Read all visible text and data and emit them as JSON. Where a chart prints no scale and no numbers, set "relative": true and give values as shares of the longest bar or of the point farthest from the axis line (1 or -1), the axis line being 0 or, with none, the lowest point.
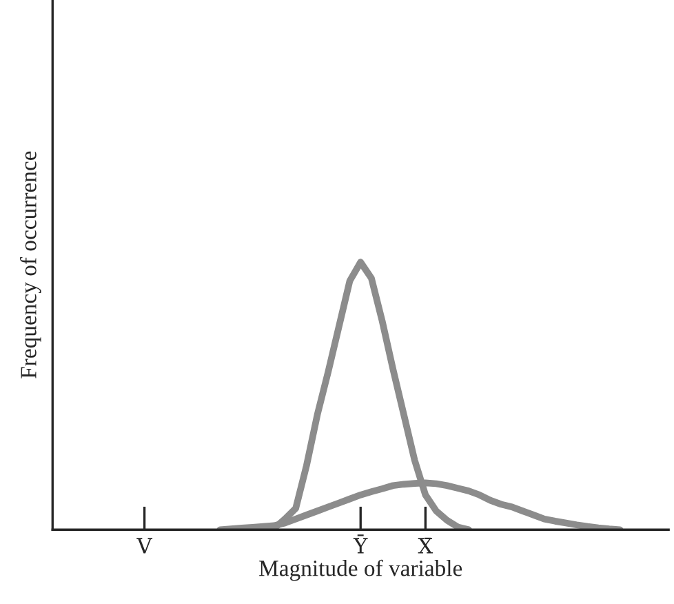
{
  "chart_data": {
    "type": "line",
    "relative": true,
    "xlabel": "Magnitude of variable",
    "ylabel": "Frequency of occurrence",
    "categories": [
      null,
      null,
      null,
      null,
      null,
      null,
      null,
      null,
      "V",
      null,
      null,
      null,
      null,
      null,
      null,
      null,
      null,
      null,
      null,
      null,
      null,
      null,
      null,
      null,
      null,
      null,
      null,
      null,
      "Ȳ",
      null,
      null,
      null,
      null,
      null,
      "X̄",
      null,
      null,
      null,
      null,
      null,
      null,
      null,
      null,
      null,
      null,
      null,
      null,
      null,
      null,
      null,
      null,
      null,
      null,
      null,
      null,
      null,
      null
    ],
    "series": [
      {
        "color": "#8c8c8c",
        "values": [
          null,
          null,
          null,
          null,
          null,
          null,
          null,
          null,
          null,
          null,
          null,
          null,
          null,
          null,
          null,
          null,
          null,
          null,
          null,
          0,
          0.005,
          0.04,
          0.08,
          0.24,
          0.43,
          0.59,
          0.76,
          0.93,
          1,
          0.94,
          0.78,
          0.6,
          0.43,
          0.26,
          0.13,
          0.07,
          0.035,
          0.01,
          0,
          null,
          null,
          null,
          null,
          null,
          null,
          null,
          null,
          null,
          null,
          null,
          null,
          null,
          null,
          null,
          null,
          null,
          null
        ]
      },
      {
        "color": "#8c8c8c",
        "values": [
          null,
          null,
          null,
          null,
          null,
          null,
          null,
          null,
          null,
          null,
          null,
          null,
          null,
          null,
          null,
          0,
          0.003,
          0.006,
          0.009,
          0.012,
          0.015,
          0.025,
          0.04,
          0.055,
          0.07,
          0.085,
          0.1,
          0.115,
          0.13,
          0.142,
          0.153,
          0.165,
          0.17,
          0.173,
          0.175,
          0.172,
          0.165,
          0.155,
          0.145,
          0.13,
          0.11,
          0.095,
          0.085,
          0.07,
          0.055,
          0.04,
          0.032,
          0.025,
          0.018,
          0.012,
          0.007,
          0.003,
          0,
          null,
          null,
          null,
          null
        ]
      }
    ],
    "grid": false,
    "line_style": "solid",
    "marker": "none"
  }
}
